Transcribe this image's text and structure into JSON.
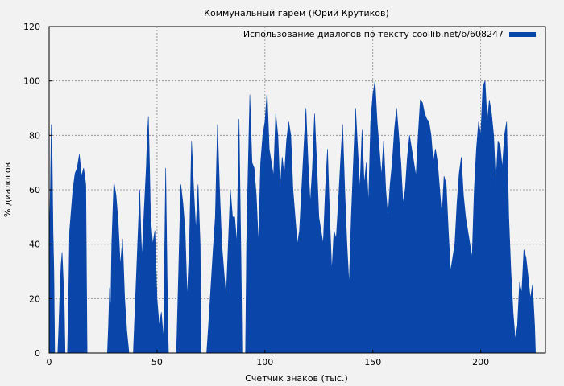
{
  "chart_data": {
    "type": "area",
    "title": "Коммунальный гарем (Юрий Крутиков)",
    "xlabel": "Счетчик знаков (тыс.)",
    "ylabel": "% диалогов",
    "xlim": [
      0,
      230
    ],
    "ylim": [
      0,
      120
    ],
    "xticks": [
      0,
      50,
      100,
      150,
      200
    ],
    "yticks": [
      0,
      20,
      40,
      60,
      80,
      100,
      120
    ],
    "grid": true,
    "legend_position": "top-right",
    "series": [
      {
        "name": "Использование диалогов по тексту coollib.net/b/608247",
        "color": "#0a46aa",
        "points": [
          [
            0,
            0
          ],
          [
            0.3,
            50
          ],
          [
            0.6,
            62
          ],
          [
            1,
            84
          ],
          [
            1.4,
            72
          ],
          [
            1.8,
            45
          ],
          [
            2.2,
            30
          ],
          [
            2.6,
            0
          ],
          [
            4,
            0
          ],
          [
            4.5,
            10
          ],
          [
            5,
            22
          ],
          [
            5.5,
            32
          ],
          [
            6,
            37
          ],
          [
            6.5,
            28
          ],
          [
            7,
            18
          ],
          [
            7.4,
            0
          ],
          [
            8.5,
            0
          ],
          [
            9,
            20
          ],
          [
            9.5,
            45
          ],
          [
            10,
            50
          ],
          [
            11,
            60
          ],
          [
            12,
            66
          ],
          [
            13,
            68
          ],
          [
            14,
            73
          ],
          [
            15,
            65
          ],
          [
            16,
            68
          ],
          [
            17,
            62
          ],
          [
            17.6,
            0
          ],
          [
            27,
            0
          ],
          [
            27.5,
            10
          ],
          [
            28,
            24
          ],
          [
            28.5,
            15
          ],
          [
            29,
            40
          ],
          [
            30,
            63
          ],
          [
            31,
            58
          ],
          [
            32,
            48
          ],
          [
            33,
            32
          ],
          [
            34,
            42
          ],
          [
            35,
            20
          ],
          [
            36,
            8
          ],
          [
            37,
            0
          ],
          [
            39,
            0
          ],
          [
            40,
            20
          ],
          [
            41,
            40
          ],
          [
            42,
            60
          ],
          [
            42.5,
            45
          ],
          [
            43,
            35
          ],
          [
            44,
            52
          ],
          [
            45,
            68
          ],
          [
            45.5,
            80
          ],
          [
            46,
            87
          ],
          [
            46.5,
            70
          ],
          [
            47,
            50
          ],
          [
            48,
            40
          ],
          [
            49,
            45
          ],
          [
            50,
            20
          ],
          [
            51,
            10
          ],
          [
            52,
            15
          ],
          [
            53,
            5
          ],
          [
            54,
            68
          ],
          [
            55,
            10
          ],
          [
            55.3,
            0
          ],
          [
            59,
            0
          ],
          [
            60,
            30
          ],
          [
            61,
            62
          ],
          [
            62,
            55
          ],
          [
            63,
            45
          ],
          [
            64,
            20
          ],
          [
            65,
            40
          ],
          [
            66,
            78
          ],
          [
            67,
            60
          ],
          [
            68,
            45
          ],
          [
            69,
            62
          ],
          [
            70,
            40
          ],
          [
            70.4,
            0
          ],
          [
            73,
            0
          ],
          [
            74,
            12
          ],
          [
            75,
            25
          ],
          [
            76,
            38
          ],
          [
            77,
            50
          ],
          [
            78,
            84
          ],
          [
            79,
            60
          ],
          [
            80,
            40
          ],
          [
            81,
            30
          ],
          [
            82,
            20
          ],
          [
            83,
            40
          ],
          [
            84,
            60
          ],
          [
            85,
            50
          ],
          [
            86,
            50
          ],
          [
            87,
            40
          ],
          [
            88,
            86
          ],
          [
            89,
            30
          ],
          [
            89.4,
            0
          ],
          [
            91,
            0
          ],
          [
            91.5,
            40
          ],
          [
            92,
            60
          ],
          [
            93,
            95
          ],
          [
            94,
            70
          ],
          [
            95,
            68
          ],
          [
            96,
            58
          ],
          [
            97,
            40
          ],
          [
            98,
            70
          ],
          [
            99,
            80
          ],
          [
            100,
            85
          ],
          [
            101,
            96
          ],
          [
            102,
            75
          ],
          [
            103,
            70
          ],
          [
            104,
            65
          ],
          [
            105,
            88
          ],
          [
            106,
            80
          ],
          [
            107,
            60
          ],
          [
            108,
            72
          ],
          [
            109,
            65
          ],
          [
            110,
            78
          ],
          [
            111,
            85
          ],
          [
            112,
            80
          ],
          [
            113,
            60
          ],
          [
            114,
            50
          ],
          [
            115,
            40
          ],
          [
            116,
            45
          ],
          [
            117,
            60
          ],
          [
            118,
            75
          ],
          [
            119,
            90
          ],
          [
            120,
            70
          ],
          [
            121,
            55
          ],
          [
            122,
            68
          ],
          [
            123,
            88
          ],
          [
            124,
            70
          ],
          [
            125,
            50
          ],
          [
            126,
            45
          ],
          [
            127,
            40
          ],
          [
            128,
            60
          ],
          [
            129,
            75
          ],
          [
            130,
            50
          ],
          [
            131,
            30
          ],
          [
            132,
            45
          ],
          [
            133,
            42
          ],
          [
            134,
            55
          ],
          [
            135,
            70
          ],
          [
            136,
            84
          ],
          [
            137,
            60
          ],
          [
            138,
            40
          ],
          [
            139,
            25
          ],
          [
            140,
            50
          ],
          [
            141,
            70
          ],
          [
            142,
            90
          ],
          [
            143,
            75
          ],
          [
            144,
            60
          ],
          [
            145,
            82
          ],
          [
            146,
            62
          ],
          [
            147,
            70
          ],
          [
            148,
            55
          ],
          [
            149,
            85
          ],
          [
            150,
            95
          ],
          [
            151,
            100
          ],
          [
            152,
            85
          ],
          [
            153,
            75
          ],
          [
            154,
            65
          ],
          [
            155,
            78
          ],
          [
            156,
            60
          ],
          [
            157,
            50
          ],
          [
            158,
            62
          ],
          [
            159,
            70
          ],
          [
            160,
            82
          ],
          [
            161,
            90
          ],
          [
            162,
            80
          ],
          [
            163,
            70
          ],
          [
            164,
            55
          ],
          [
            165,
            60
          ],
          [
            166,
            72
          ],
          [
            167,
            80
          ],
          [
            168,
            75
          ],
          [
            169,
            70
          ],
          [
            170,
            65
          ],
          [
            171,
            80
          ],
          [
            172,
            93
          ],
          [
            173,
            92
          ],
          [
            174,
            88
          ],
          [
            175,
            86
          ],
          [
            176,
            85
          ],
          [
            177,
            80
          ],
          [
            178,
            70
          ],
          [
            179,
            75
          ],
          [
            180,
            70
          ],
          [
            181,
            60
          ],
          [
            182,
            50
          ],
          [
            183,
            65
          ],
          [
            184,
            62
          ],
          [
            185,
            45
          ],
          [
            186,
            30
          ],
          [
            187,
            35
          ],
          [
            188,
            40
          ],
          [
            189,
            55
          ],
          [
            190,
            66
          ],
          [
            191,
            72
          ],
          [
            192,
            58
          ],
          [
            193,
            50
          ],
          [
            194,
            45
          ],
          [
            195,
            40
          ],
          [
            196,
            35
          ],
          [
            197,
            60
          ],
          [
            198,
            75
          ],
          [
            199,
            85
          ],
          [
            200,
            80
          ],
          [
            201,
            98
          ],
          [
            202,
            100
          ],
          [
            203,
            85
          ],
          [
            204,
            93
          ],
          [
            205,
            88
          ],
          [
            206,
            80
          ],
          [
            207,
            62
          ],
          [
            208,
            78
          ],
          [
            209,
            76
          ],
          [
            210,
            68
          ],
          [
            211,
            80
          ],
          [
            212,
            85
          ],
          [
            213,
            50
          ],
          [
            214,
            30
          ],
          [
            215,
            15
          ],
          [
            216,
            5
          ],
          [
            217,
            10
          ],
          [
            218,
            26
          ],
          [
            219,
            22
          ],
          [
            220,
            38
          ],
          [
            221,
            35
          ],
          [
            222,
            28
          ],
          [
            223,
            20
          ],
          [
            224,
            25
          ],
          [
            225,
            10
          ],
          [
            225.4,
            0
          ]
        ]
      }
    ]
  }
}
